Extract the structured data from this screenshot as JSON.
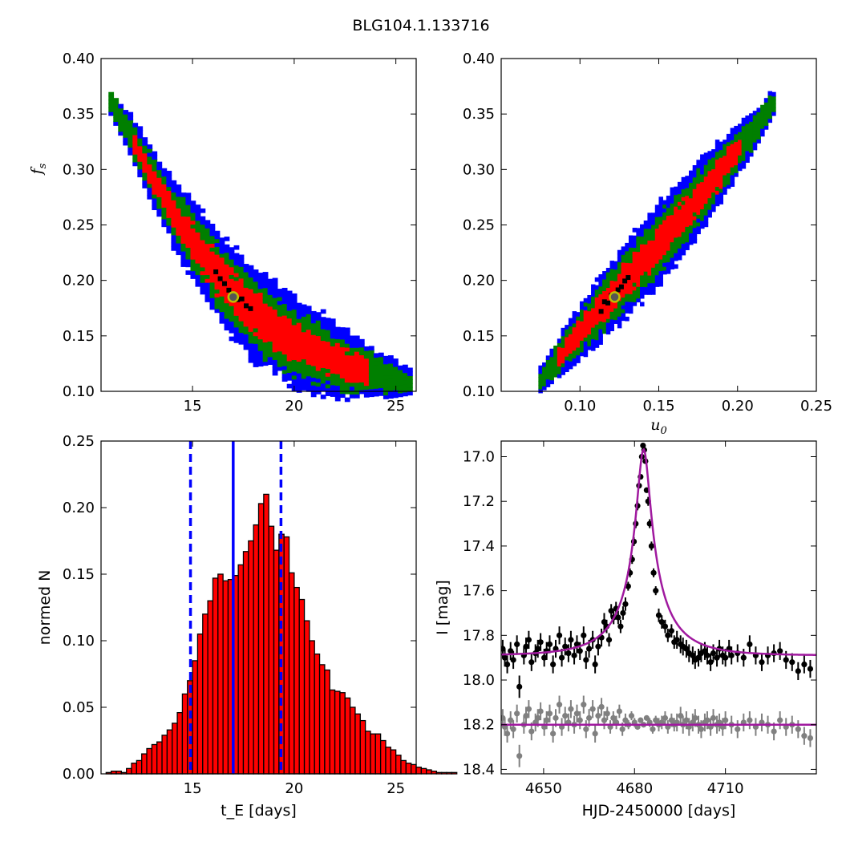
{
  "figure_title": "BLG104.1.133716",
  "colors": {
    "outer_contour": "#0000ff",
    "middle_contour": "#007f00",
    "inner_contour": "#ff0000",
    "best_fit_points": "#000000",
    "best_fit_marker_edge": "#bfbf00",
    "histogram_fill": "#ff0000",
    "histogram_edge": "#000000",
    "median_line": "#0000ff",
    "model_curve": "#a0199f",
    "data_points": "#000000",
    "residual_points": "#808080"
  },
  "chart_data": [
    {
      "type": "heatmap",
      "panel": "top-left",
      "title": "",
      "xlabel": "",
      "ylabel": "f_s",
      "xlim": [
        10.5,
        26
      ],
      "ylim": [
        0.1,
        0.4
      ],
      "xticks": [
        "15",
        "20",
        "25"
      ],
      "yticks": [
        "0.10",
        "0.15",
        "0.20",
        "0.25",
        "0.30",
        "0.35",
        "0.40"
      ],
      "ridge": [
        [
          11.0,
          0.36
        ],
        [
          12.0,
          0.33
        ],
        [
          13.0,
          0.295
        ],
        [
          14.0,
          0.262
        ],
        [
          15.0,
          0.237
        ],
        [
          16.0,
          0.212
        ],
        [
          17.0,
          0.189
        ],
        [
          18.0,
          0.17
        ],
        [
          19.0,
          0.158
        ],
        [
          20.0,
          0.145
        ],
        [
          21.0,
          0.136
        ],
        [
          22.0,
          0.128
        ],
        [
          23.0,
          0.121
        ],
        [
          24.0,
          0.116
        ],
        [
          25.0,
          0.111
        ],
        [
          25.7,
          0.108
        ]
      ],
      "contour_levels": [
        "outer",
        "middle",
        "inner"
      ],
      "best_fit": {
        "x": 17.0,
        "y": 0.185
      }
    },
    {
      "type": "heatmap",
      "panel": "top-right",
      "title": "",
      "xlabel": "u_0",
      "ylabel": "",
      "xlim": [
        0.05,
        0.25
      ],
      "ylim": [
        0.1,
        0.4
      ],
      "xticks": [
        "0.10",
        "0.15",
        "0.20",
        "0.25"
      ],
      "yticks": [
        "0.10",
        "0.15",
        "0.20",
        "0.25",
        "0.30",
        "0.35",
        "0.40"
      ],
      "ridge": [
        [
          0.075,
          0.11
        ],
        [
          0.09,
          0.136
        ],
        [
          0.105,
          0.161
        ],
        [
          0.12,
          0.185
        ],
        [
          0.135,
          0.209
        ],
        [
          0.15,
          0.232
        ],
        [
          0.165,
          0.256
        ],
        [
          0.18,
          0.282
        ],
        [
          0.195,
          0.308
        ],
        [
          0.21,
          0.334
        ],
        [
          0.223,
          0.36
        ]
      ],
      "contour_levels": [
        "outer",
        "middle",
        "inner"
      ],
      "best_fit": {
        "x": 0.122,
        "y": 0.185
      }
    },
    {
      "type": "bar",
      "panel": "bottom-left",
      "title": "",
      "xlabel": "t_E [days]",
      "ylabel": "normed N",
      "xlim": [
        10.5,
        26
      ],
      "ylim": [
        0.0,
        0.25
      ],
      "xticks": [
        "15",
        "20",
        "25"
      ],
      "yticks": [
        "0.00",
        "0.05",
        "0.10",
        "0.15",
        "0.20",
        "0.25"
      ],
      "bin_width": 0.25,
      "bin_start": 10.75,
      "values": [
        0.001,
        0.002,
        0.002,
        0.001,
        0.004,
        0.008,
        0.01,
        0.015,
        0.019,
        0.022,
        0.024,
        0.029,
        0.033,
        0.038,
        0.046,
        0.06,
        0.07,
        0.085,
        0.105,
        0.12,
        0.13,
        0.147,
        0.15,
        0.145,
        0.146,
        0.149,
        0.157,
        0.167,
        0.175,
        0.187,
        0.203,
        0.21,
        0.186,
        0.168,
        0.18,
        0.178,
        0.151,
        0.14,
        0.131,
        0.115,
        0.1,
        0.09,
        0.082,
        0.078,
        0.063,
        0.062,
        0.061,
        0.057,
        0.05,
        0.045,
        0.04,
        0.032,
        0.03,
        0.03,
        0.025,
        0.02,
        0.018,
        0.014,
        0.01,
        0.008,
        0.007,
        0.005,
        0.004,
        0.003,
        0.002,
        0.001,
        0.001,
        0.001,
        0.001
      ],
      "median": 17.0,
      "lower_bound": 14.9,
      "upper_bound": 19.35
    },
    {
      "type": "scatter",
      "panel": "bottom-right",
      "title": "",
      "xlabel": "HJD-2450000 [days]",
      "ylabel": "I [mag]",
      "xlim": [
        4636,
        4740
      ],
      "ylim": [
        18.42,
        16.93
      ],
      "y_inverted": true,
      "xticks": [
        "4650",
        "4680",
        "4710"
      ],
      "yticks": [
        "17.0",
        "17.2",
        "17.4",
        "17.6",
        "17.8",
        "18.0",
        "18.2",
        "18.4"
      ],
      "model": {
        "t0": 4683.0,
        "tE": 17.0,
        "u0": 0.122,
        "fs": 0.185,
        "baseline": 17.89
      },
      "residual_baseline": 18.2,
      "series": [
        {
          "x": [
            4636.5,
            4637.2,
            4638.0,
            4639.1,
            4640.0,
            4641.2,
            4642.0,
            4643.5,
            4644.2,
            4645.1,
            4646.0,
            4647.3,
            4648.1,
            4649.0,
            4650.2,
            4651.0,
            4652.0,
            4653.1,
            4654.0,
            4655.2,
            4656.0,
            4657.1,
            4658.2,
            4659.0,
            4660.1,
            4661.0,
            4662.0,
            4663.2,
            4664.0,
            4665.0,
            4666.2,
            4667.0,
            4668.0,
            4669.1,
            4670.0,
            4670.8,
            4671.6,
            4672.3,
            4673.1,
            4673.9,
            4674.6,
            4675.4,
            4676.2,
            4677.0,
            4677.9,
            4678.5,
            4679.2,
            4679.8,
            4680.4,
            4681.0,
            4681.5,
            4682.0,
            4682.4,
            4682.8,
            4683.2,
            4683.6,
            4684.0,
            4684.5,
            4685.0,
            4685.6,
            4686.3,
            4687.0,
            4688.0,
            4689.0,
            4690.1,
            4691.0,
            4692.2,
            4693.1,
            4694.0,
            4695.2,
            4696.0,
            4697.1,
            4698.0,
            4699.2,
            4700.0,
            4701.1,
            4702.0,
            4703.2,
            4704.0,
            4705.1,
            4706.0,
            4707.2,
            4708.0,
            4709.1,
            4710.0,
            4711.2,
            4712.0,
            4714.0,
            4716.0,
            4718.0,
            4720.0,
            4722.0,
            4724.0,
            4726.0,
            4728.0,
            4730.0,
            4732.0,
            4734.0,
            4736.0,
            4738.0
          ],
          "y": [
            17.86,
            17.9,
            17.93,
            17.87,
            17.91,
            17.84,
            18.03,
            17.89,
            17.85,
            17.82,
            17.92,
            17.88,
            17.86,
            17.83,
            17.9,
            17.87,
            17.84,
            17.93,
            17.86,
            17.8,
            17.9,
            17.85,
            17.88,
            17.82,
            17.89,
            17.84,
            17.87,
            17.8,
            17.91,
            17.86,
            17.82,
            17.93,
            17.85,
            17.81,
            17.74,
            17.76,
            17.82,
            17.69,
            17.72,
            17.68,
            17.72,
            17.76,
            17.7,
            17.66,
            17.58,
            17.52,
            17.46,
            17.38,
            17.3,
            17.22,
            17.13,
            17.09,
            17.0,
            16.95,
            16.97,
            17.02,
            17.15,
            17.2,
            17.3,
            17.4,
            17.52,
            17.6,
            17.71,
            17.74,
            17.76,
            17.8,
            17.78,
            17.83,
            17.82,
            17.84,
            17.85,
            17.86,
            17.88,
            17.89,
            17.91,
            17.9,
            17.88,
            17.87,
            17.89,
            17.92,
            17.88,
            17.9,
            17.86,
            17.89,
            17.9,
            17.86,
            17.89,
            17.88,
            17.9,
            17.84,
            17.89,
            17.92,
            17.89,
            17.88,
            17.87,
            17.91,
            17.92,
            17.96,
            17.93,
            17.95
          ],
          "errors": [
            0.04,
            0.04,
            0.04,
            0.04,
            0.04,
            0.04,
            0.05,
            0.04,
            0.04,
            0.04,
            0.04,
            0.04,
            0.04,
            0.04,
            0.04,
            0.04,
            0.04,
            0.04,
            0.04,
            0.04,
            0.04,
            0.04,
            0.04,
            0.04,
            0.04,
            0.04,
            0.04,
            0.04,
            0.04,
            0.04,
            0.04,
            0.04,
            0.04,
            0.04,
            0.04,
            0.03,
            0.03,
            0.03,
            0.03,
            0.03,
            0.03,
            0.03,
            0.03,
            0.03,
            0.02,
            0.02,
            0.02,
            0.02,
            0.02,
            0.02,
            0.01,
            0.01,
            0.01,
            0.01,
            0.01,
            0.01,
            0.01,
            0.02,
            0.02,
            0.02,
            0.02,
            0.02,
            0.03,
            0.03,
            0.03,
            0.03,
            0.03,
            0.03,
            0.04,
            0.04,
            0.04,
            0.04,
            0.04,
            0.04,
            0.04,
            0.04,
            0.04,
            0.04,
            0.04,
            0.04,
            0.04,
            0.04,
            0.04,
            0.04,
            0.04,
            0.04,
            0.04,
            0.04,
            0.04,
            0.04,
            0.04,
            0.04,
            0.04,
            0.04,
            0.04,
            0.04,
            0.04,
            0.04,
            0.04,
            0.04
          ]
        },
        {
          "x": [
            4636.5,
            4637.2,
            4638.0,
            4639.1,
            4640.0,
            4641.2,
            4642.0,
            4643.5,
            4644.2,
            4645.1,
            4646.0,
            4647.3,
            4648.1,
            4649.0,
            4650.2,
            4651.0,
            4652.0,
            4653.1,
            4654.0,
            4655.2,
            4656.0,
            4657.1,
            4658.2,
            4659.0,
            4660.1,
            4661.0,
            4662.0,
            4663.2,
            4664.0,
            4665.0,
            4666.2,
            4667.0,
            4668.0,
            4669.1,
            4670.0,
            4671.0,
            4672.0,
            4673.0,
            4674.0,
            4675.0,
            4676.0,
            4677.0,
            4678.0,
            4679.0,
            4680.0,
            4681.0,
            4682.0,
            4683.0,
            4684.0,
            4685.0,
            4686.0,
            4687.0,
            4688.0,
            4689.0,
            4690.1,
            4691.0,
            4692.2,
            4693.1,
            4694.0,
            4695.2,
            4696.0,
            4697.1,
            4698.0,
            4699.2,
            4700.0,
            4701.1,
            4702.0,
            4703.2,
            4704.0,
            4705.1,
            4706.0,
            4707.2,
            4708.0,
            4709.1,
            4710.0,
            4712.0,
            4714.0,
            4716.0,
            4718.0,
            4720.0,
            4722.0,
            4724.0,
            4726.0,
            4728.0,
            4730.0,
            4732.0,
            4734.0,
            4736.0,
            4738.0
          ],
          "y": [
            18.17,
            18.21,
            18.24,
            18.18,
            18.22,
            18.15,
            18.34,
            18.2,
            18.16,
            18.13,
            18.23,
            18.19,
            18.17,
            18.14,
            18.21,
            18.18,
            18.15,
            18.24,
            18.17,
            18.11,
            18.21,
            18.16,
            18.19,
            18.13,
            18.2,
            18.15,
            18.18,
            18.11,
            18.22,
            18.17,
            18.13,
            18.24,
            18.16,
            18.12,
            18.18,
            18.15,
            18.21,
            18.17,
            18.19,
            18.14,
            18.22,
            18.18,
            18.2,
            18.16,
            18.19,
            18.21,
            18.18,
            18.2,
            18.17,
            18.19,
            18.22,
            18.18,
            18.2,
            18.19,
            18.17,
            18.21,
            18.18,
            18.2,
            18.19,
            18.16,
            18.2,
            18.18,
            18.21,
            18.19,
            18.17,
            18.2,
            18.22,
            18.19,
            18.18,
            18.21,
            18.17,
            18.2,
            18.19,
            18.21,
            18.18,
            18.2,
            18.22,
            18.19,
            18.18,
            18.21,
            18.19,
            18.2,
            18.23,
            18.18,
            18.21,
            18.2,
            18.22,
            18.25,
            18.26
          ],
          "errors": [
            0.04,
            0.04,
            0.04,
            0.04,
            0.04,
            0.04,
            0.05,
            0.04,
            0.04,
            0.04,
            0.04,
            0.04,
            0.04,
            0.04,
            0.04,
            0.04,
            0.04,
            0.04,
            0.04,
            0.04,
            0.04,
            0.04,
            0.04,
            0.04,
            0.04,
            0.04,
            0.04,
            0.04,
            0.04,
            0.04,
            0.04,
            0.04,
            0.04,
            0.04,
            0.04,
            0.03,
            0.03,
            0.03,
            0.03,
            0.03,
            0.03,
            0.03,
            0.02,
            0.02,
            0.02,
            0.01,
            0.01,
            0.01,
            0.01,
            0.02,
            0.02,
            0.02,
            0.03,
            0.03,
            0.03,
            0.03,
            0.03,
            0.03,
            0.04,
            0.04,
            0.04,
            0.04,
            0.04,
            0.04,
            0.04,
            0.04,
            0.04,
            0.04,
            0.04,
            0.04,
            0.04,
            0.04,
            0.04,
            0.04,
            0.04,
            0.04,
            0.04,
            0.04,
            0.04,
            0.04,
            0.04,
            0.04,
            0.04,
            0.04,
            0.04,
            0.04,
            0.04,
            0.04,
            0.04
          ]
        }
      ]
    }
  ]
}
